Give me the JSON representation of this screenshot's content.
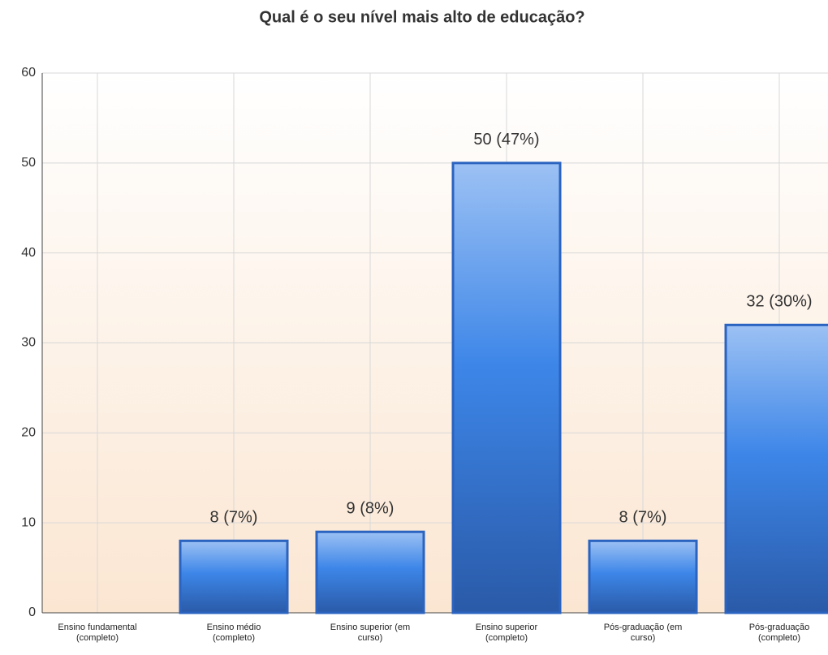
{
  "chart_data": {
    "type": "bar",
    "title": "Qual é o seu nível mais alto de educação?",
    "categories": [
      "Ensino fundamental (completo)",
      "Ensino médio (completo)",
      "Ensino superior (em curso)",
      "Ensino superior (completo)",
      "Pós-graduação (em curso)",
      "Pós-graduação (completo)"
    ],
    "values": [
      0,
      8,
      9,
      50,
      8,
      32
    ],
    "value_labels": [
      null,
      "8 (7%)",
      "9 (8%)",
      "50 (47%)",
      "8 (7%)",
      "32 (30%)"
    ],
    "color": "#3d86e8",
    "ylim": [
      0,
      60
    ],
    "yticks": [
      0,
      10,
      20,
      30,
      40,
      50,
      60
    ],
    "grid": true
  }
}
